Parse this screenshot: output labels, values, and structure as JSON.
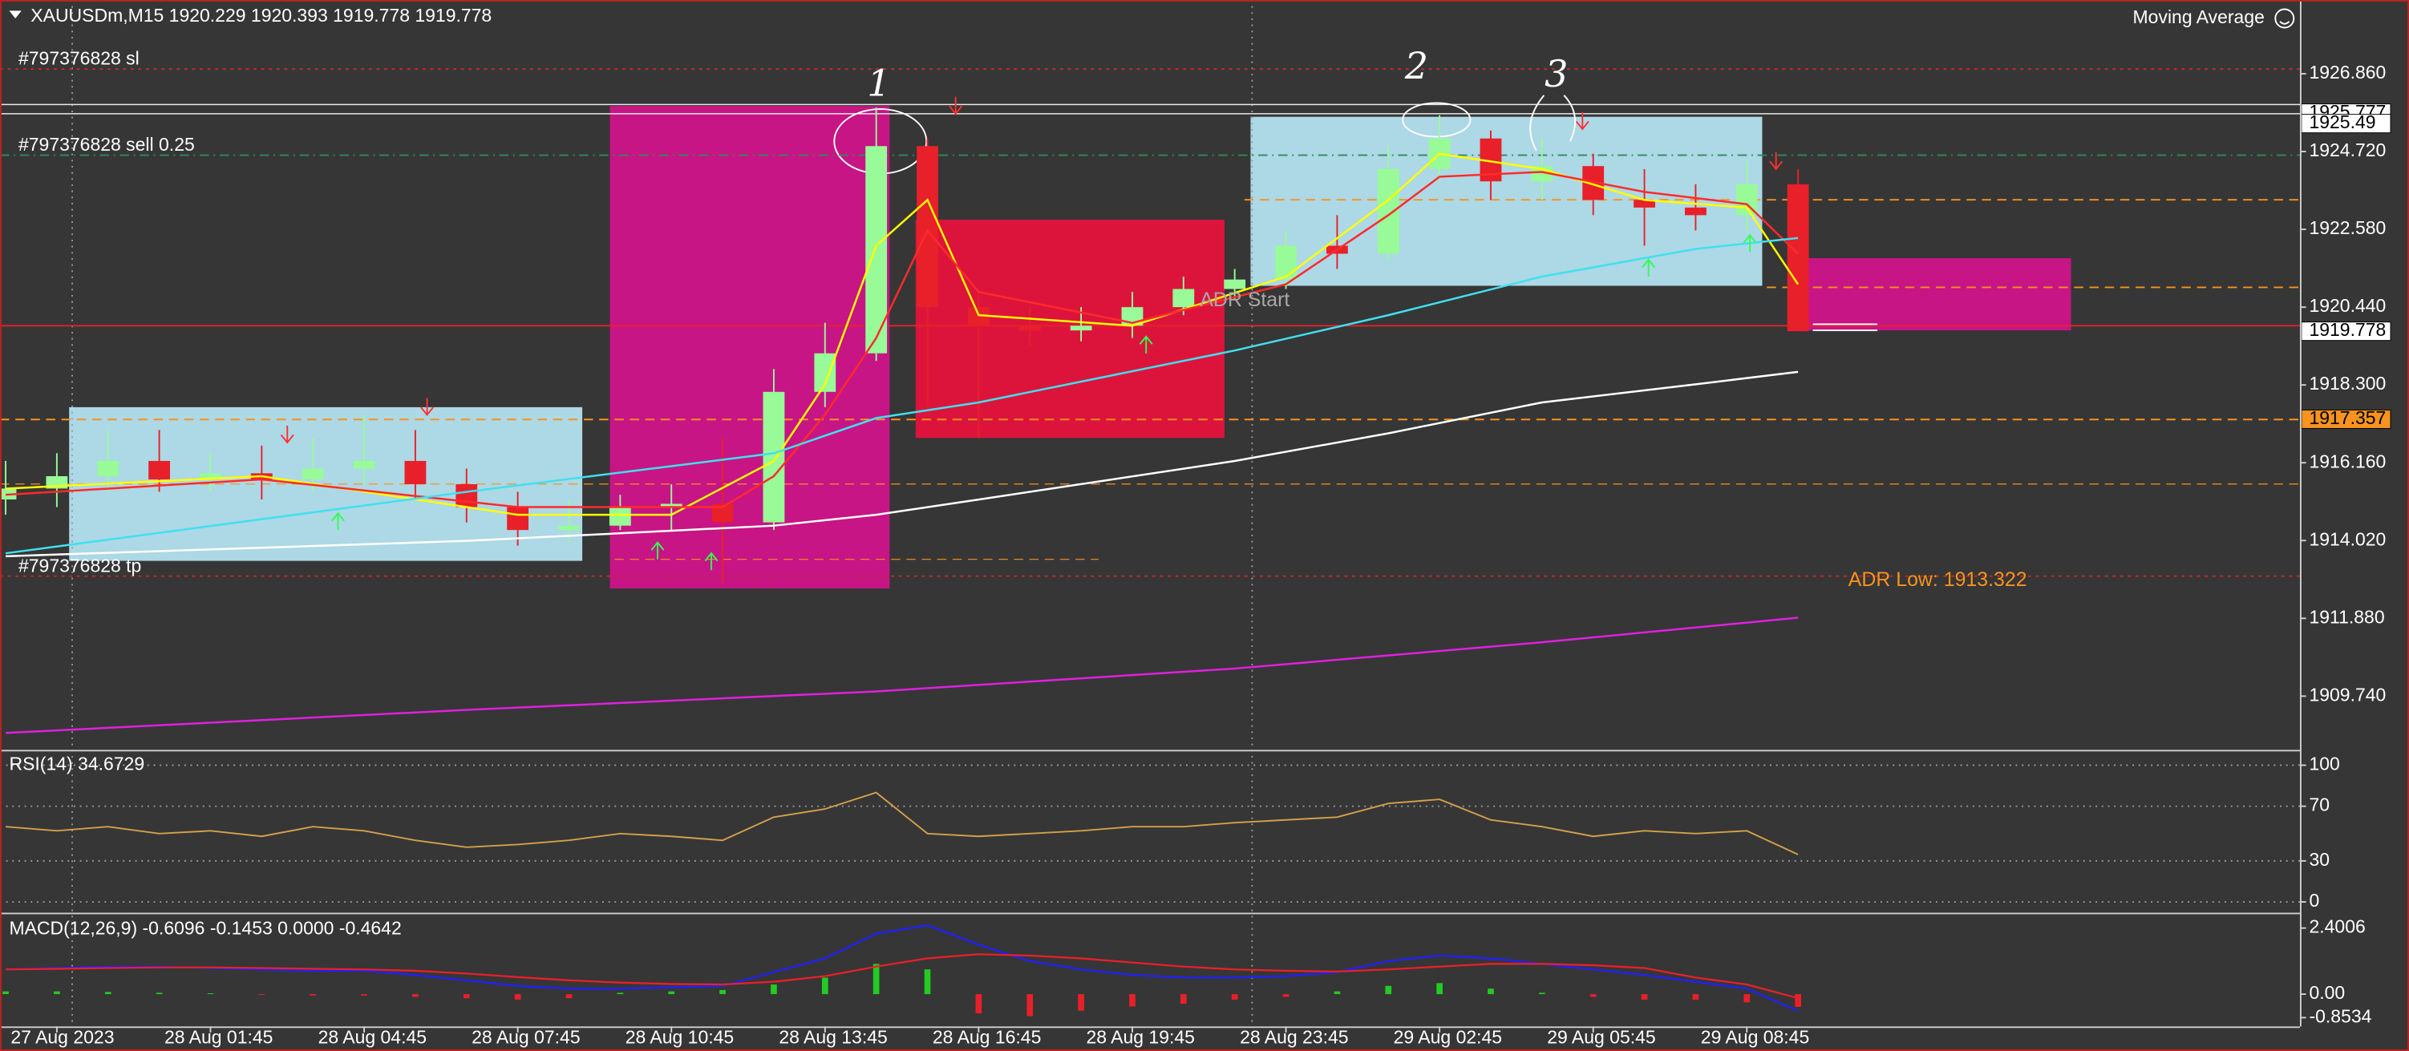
{
  "chart_data": [
    {
      "type": "candlestick",
      "title": "XAUUSDm,M15  1920.229 1920.393 1919.778 1919.778",
      "indicator_label": "Moving Average",
      "x": [
        -1,
        0,
        1,
        2,
        3,
        4,
        5,
        6,
        7,
        8,
        9,
        10,
        11,
        12,
        13,
        14,
        15,
        16,
        17,
        18,
        19,
        20,
        21,
        22,
        23,
        24,
        25,
        26,
        27,
        28,
        29,
        30,
        31,
        32,
        33,
        34
      ],
      "open": [
        1915.15,
        1915.45,
        1915.79,
        1916.21,
        1915.7,
        1915.87,
        1915.7,
        1916.0,
        1916.21,
        1915.57,
        1914.94,
        1914.31,
        1914.43,
        1914.94,
        1915.03,
        1914.52,
        1918.11,
        1919.17,
        1924.87,
        1920.44,
        1919.93,
        1919.8,
        1919.93,
        1920.44,
        1920.94,
        1921.2,
        1922.13,
        1921.91,
        1924.24,
        1925.08,
        1923.9,
        1924.32,
        1923.39,
        1923.18,
        1922.97,
        1923.82
      ],
      "high": [
        1916.21,
        1916.42,
        1917.06,
        1917.06,
        1916.42,
        1916.63,
        1916.84,
        1917.48,
        1917.06,
        1916.0,
        1915.36,
        1915.15,
        1915.28,
        1915.57,
        1916.84,
        1918.74,
        1920.01,
        1925.93,
        1925.08,
        1920.86,
        1920.44,
        1920.44,
        1920.86,
        1921.28,
        1921.49,
        1922.55,
        1922.97,
        1924.87,
        1925.72,
        1925.3,
        1925.08,
        1924.66,
        1924.24,
        1923.82,
        1924.45,
        1924.24
      ],
      "low": [
        1914.73,
        1914.94,
        1915.36,
        1915.36,
        1915.36,
        1915.15,
        1915.36,
        1915.57,
        1915.15,
        1914.52,
        1913.88,
        1914.01,
        1914.31,
        1914.31,
        1912.83,
        1914.31,
        1917.69,
        1918.96,
        1917.69,
        1916.84,
        1919.38,
        1919.5,
        1919.59,
        1920.22,
        1920.65,
        1920.94,
        1921.49,
        1921.7,
        1923.9,
        1923.39,
        1923.39,
        1922.97,
        1922.13,
        1922.55,
        1922.55,
        1919.778
      ],
      "close": [
        1915.45,
        1915.79,
        1916.21,
        1915.7,
        1915.87,
        1915.7,
        1916.0,
        1916.21,
        1915.57,
        1914.94,
        1914.31,
        1914.43,
        1914.94,
        1915.03,
        1914.52,
        1918.11,
        1919.17,
        1924.87,
        1920.44,
        1919.93,
        1919.8,
        1919.93,
        1920.44,
        1920.94,
        1921.2,
        1922.13,
        1921.91,
        1924.24,
        1925.08,
        1923.9,
        1924.32,
        1923.39,
        1923.18,
        1922.97,
        1923.82,
        1919.778
      ],
      "up_color": "#98fb98",
      "down_color": "#e8202a",
      "lines": [
        {
          "color": "#ffff00",
          "x": [
            -1,
            4,
            9,
            12,
            14,
            15,
            16,
            17,
            18,
            21,
            24,
            26,
            27,
            29,
            31,
            33,
            34
          ],
          "values": [
            1915.45,
            1915.79,
            1914.73,
            1914.73,
            1916.21,
            1918.32,
            1922.13,
            1923.39,
            1920.22,
            1919.93,
            1921.28,
            1923.39,
            1924.66,
            1924.24,
            1923.39,
            1923.18,
            1921.07
          ]
        },
        {
          "color": "#ff2a2a",
          "x": [
            -1,
            4,
            9,
            13,
            14,
            15,
            16,
            17,
            18,
            21,
            24,
            26,
            27,
            29,
            31,
            33,
            34
          ],
          "values": [
            1915.28,
            1915.7,
            1914.94,
            1914.94,
            1915.79,
            1917.48,
            1919.59,
            1922.55,
            1920.86,
            1920.01,
            1921.07,
            1922.97,
            1924.03,
            1924.16,
            1923.61,
            1923.27,
            1921.91
          ]
        },
        {
          "color": "#40e0f0",
          "x": [
            -1,
            8,
            14,
            16,
            18,
            23,
            26,
            29,
            32,
            34
          ],
          "values": [
            1913.67,
            1915.36,
            1916.42,
            1917.39,
            1917.82,
            1919.25,
            1920.22,
            1921.28,
            1922.04,
            1922.34
          ]
        },
        {
          "color": "#ffffff",
          "x": [
            -1,
            8,
            14,
            16,
            18,
            23,
            26,
            29,
            32,
            34
          ],
          "values": [
            1913.59,
            1914.01,
            1914.43,
            1914.73,
            1915.15,
            1916.21,
            1916.97,
            1917.82,
            1918.32,
            1918.66
          ]
        },
        {
          "color": "#e020e0",
          "x": [
            -1,
            8,
            16,
            23,
            29,
            34
          ],
          "values": [
            1908.73,
            1909.36,
            1909.87,
            1910.5,
            1911.22,
            1911.9
          ]
        }
      ],
      "order_lines": [
        {
          "label": "#797376828 sl",
          "value": 1926.99,
          "color": "#c82828"
        },
        {
          "label": "#797376828 sell 0.25",
          "value": 1924.62,
          "color": "#2e8b57"
        },
        {
          "label": "#797376828 tp",
          "value": 1913.04,
          "color": "#c82828"
        }
      ],
      "price_labels": [
        {
          "value": 1925.777,
          "color": "#ffffff"
        },
        {
          "value": 1925.49,
          "color": "#ffffff"
        },
        {
          "value": 1919.778,
          "color": "#ffffff"
        },
        {
          "value": 1917.357,
          "color": "#f7931e"
        }
      ],
      "annotations": [
        "ADR Start",
        "ADR Low: 1913.322",
        "1",
        "2",
        "3"
      ],
      "xlim": [
        -1.11,
        43.8
      ],
      "xticks": [
        {
          "value": 0,
          "label": "27 Aug 2023"
        },
        {
          "value": 3,
          "label": "28 Aug 01:45"
        },
        {
          "value": 6,
          "label": "28 Aug 04:45"
        },
        {
          "value": 9,
          "label": "28 Aug 07:45"
        },
        {
          "value": 12,
          "label": "28 Aug 10:45"
        },
        {
          "value": 15,
          "label": "28 Aug 13:45"
        },
        {
          "value": 18,
          "label": "28 Aug 16:45"
        },
        {
          "value": 21,
          "label": "28 Aug 19:45"
        },
        {
          "value": 24,
          "label": "28 Aug 23:45"
        },
        {
          "value": 27,
          "label": "29 Aug 02:45"
        },
        {
          "value": 30,
          "label": "29 Aug 05:45"
        },
        {
          "value": 33,
          "label": "29 Aug 08:45"
        }
      ],
      "ylim": [
        1908.263,
        1928.889
      ],
      "yticks": [
        {
          "value": 1926.86,
          "label": "1926.860"
        },
        {
          "value": 1924.72,
          "label": "1924.720"
        },
        {
          "value": 1922.58,
          "label": "1922.580"
        },
        {
          "value": 1920.44,
          "label": "1920.440"
        },
        {
          "value": 1918.3,
          "label": "1918.300"
        },
        {
          "value": 1916.16,
          "label": "1916.160"
        },
        {
          "value": 1914.02,
          "label": "1914.020"
        },
        {
          "value": 1911.88,
          "label": "1911.880"
        },
        {
          "value": 1909.74,
          "label": "1909.740"
        }
      ]
    },
    {
      "type": "line",
      "title": "RSI(14) 34.6729",
      "color": "#d4a04a",
      "x": [
        -1,
        0,
        1,
        2,
        3,
        4,
        5,
        6,
        7,
        8,
        9,
        10,
        11,
        12,
        13,
        14,
        15,
        16,
        17,
        18,
        19,
        20,
        21,
        22,
        23,
        24,
        25,
        26,
        27,
        28,
        29,
        30,
        31,
        32,
        33,
        34
      ],
      "values": [
        55,
        52,
        55,
        50,
        52,
        48,
        55,
        52,
        45,
        40,
        42,
        45,
        50,
        48,
        45,
        62,
        68,
        80,
        50,
        48,
        50,
        52,
        55,
        55,
        58,
        60,
        62,
        72,
        75,
        60,
        55,
        48,
        52,
        50,
        52,
        34.6729
      ],
      "xlim": [
        -1.11,
        43.8
      ],
      "ylim": [
        -7.9,
        109
      ],
      "yticks": [
        100,
        70,
        30,
        0
      ]
    },
    {
      "type": "macd",
      "title": "MACD(12,26,9) -0.6096 -0.1453 0.0000 -0.4642",
      "x": [
        -1,
        0,
        1,
        2,
        3,
        4,
        5,
        6,
        7,
        8,
        9,
        10,
        11,
        12,
        13,
        14,
        15,
        16,
        17,
        18,
        19,
        20,
        21,
        22,
        23,
        24,
        25,
        26,
        27,
        28,
        29,
        30,
        31,
        32,
        33,
        34
      ],
      "histogram": [
        0.1,
        0.1,
        0.08,
        0.05,
        0.03,
        -0.02,
        -0.05,
        -0.05,
        -0.1,
        -0.15,
        -0.2,
        -0.15,
        0.05,
        0.1,
        0.15,
        0.35,
        0.6,
        1.1,
        0.9,
        -0.7,
        -0.8,
        -0.6,
        -0.45,
        -0.35,
        -0.2,
        -0.1,
        0.1,
        0.3,
        0.4,
        0.2,
        0.05,
        -0.1,
        -0.2,
        -0.2,
        -0.3,
        -0.4642
      ],
      "up_color": "#22cc22",
      "down_color": "#e8202a",
      "main": {
        "color": "#2020ff",
        "values": [
          0.9,
          0.95,
          1.0,
          1.0,
          0.95,
          0.9,
          0.85,
          0.85,
          0.7,
          0.5,
          0.3,
          0.2,
          0.2,
          0.25,
          0.3,
          0.8,
          1.3,
          2.2,
          2.5,
          1.8,
          1.2,
          0.9,
          0.7,
          0.6,
          0.6,
          0.65,
          0.8,
          1.2,
          1.4,
          1.3,
          1.1,
          0.9,
          0.7,
          0.45,
          0.2,
          -0.6096
        ]
      },
      "signal": {
        "color": "#e8202a",
        "values": [
          0.9,
          0.92,
          0.95,
          0.97,
          0.97,
          0.95,
          0.92,
          0.9,
          0.85,
          0.75,
          0.62,
          0.5,
          0.42,
          0.37,
          0.35,
          0.45,
          0.65,
          1.0,
          1.3,
          1.45,
          1.4,
          1.3,
          1.15,
          1.0,
          0.9,
          0.85,
          0.82,
          0.9,
          1.0,
          1.1,
          1.1,
          1.05,
          0.95,
          0.6,
          0.35,
          -0.1453
        ]
      },
      "xlim": [
        -1.11,
        43.8
      ],
      "ylim": [
        -1.173,
        2.847
      ],
      "yticks": [
        2.4006,
        {
          "value": 0,
          "label": "0.00"
        },
        -0.8534
      ]
    }
  ]
}
